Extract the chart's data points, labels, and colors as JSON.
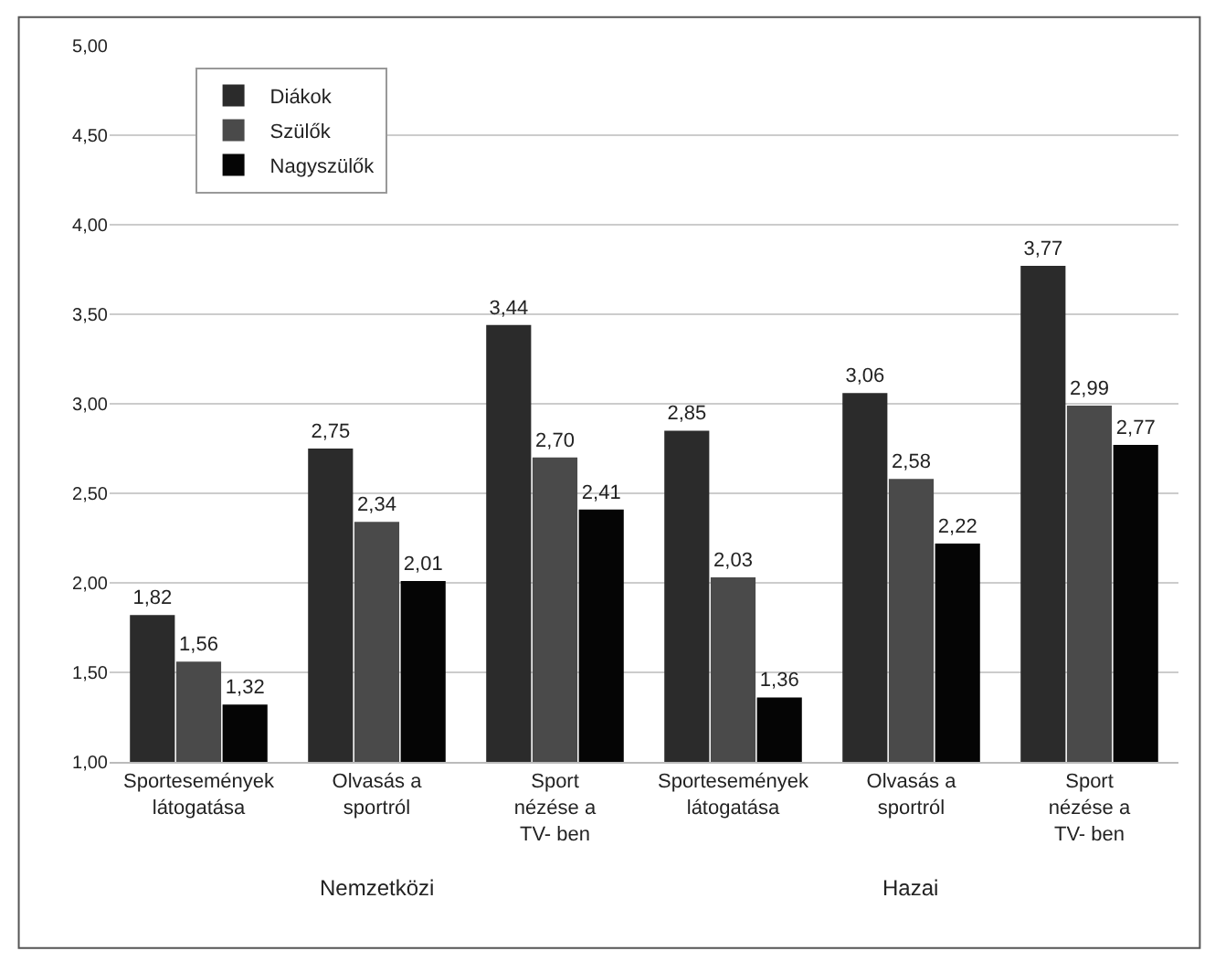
{
  "chart_data": {
    "type": "bar",
    "categories": [
      "Sportesemények\nlátogatása",
      "Olvasás a\nsportról",
      "Sport\nnézése a\nTV- ben",
      "Sportesemények\nlátogatása",
      "Olvasás a\nsportról",
      "Sport\nnézése a\nTV- ben"
    ],
    "series": [
      {
        "name": "Diákok",
        "color": "#2b2b2b",
        "values": [
          1.82,
          2.75,
          3.44,
          2.85,
          3.06,
          3.77
        ],
        "value_labels": [
          "1,82",
          "2,75",
          "3,44",
          "2,85",
          "3,06",
          "3,77"
        ]
      },
      {
        "name": "Szülők",
        "color": "#4a4a4a",
        "values": [
          1.56,
          2.34,
          2.7,
          2.03,
          2.58,
          2.99
        ],
        "value_labels": [
          "1,56",
          "2,34",
          "2,70",
          "2,03",
          "2,58",
          "2,99"
        ]
      },
      {
        "name": "Nagyszülők",
        "color": "#050505",
        "values": [
          1.32,
          2.01,
          2.41,
          1.36,
          2.22,
          2.77
        ],
        "value_labels": [
          "1,32",
          "2,01",
          "2,41",
          "1,36",
          "2,22",
          "2,77"
        ]
      }
    ],
    "annotations": [
      "Nemzetközi",
      "Hazai"
    ],
    "ylim": [
      1,
      5
    ],
    "yticks": [
      {
        "value": 1,
        "label": "1,00"
      },
      {
        "value": 1.5,
        "label": "1,50"
      },
      {
        "value": 2,
        "label": "2,00"
      },
      {
        "value": 2.5,
        "label": "2,50"
      },
      {
        "value": 3,
        "label": "3,00"
      },
      {
        "value": 3.5,
        "label": "3,50"
      },
      {
        "value": 4,
        "label": "4,00"
      },
      {
        "value": 4.5,
        "label": "4,50"
      },
      {
        "value": 5,
        "label": "5,00"
      }
    ],
    "grid": "y",
    "legend": "top left"
  }
}
